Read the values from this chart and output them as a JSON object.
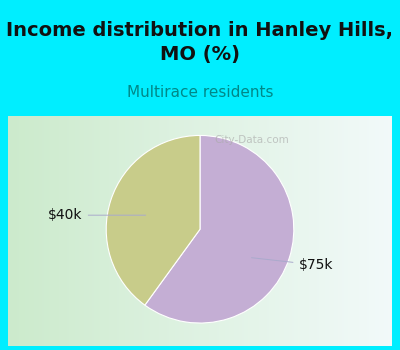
{
  "title": "Income distribution in Hanley Hills,\nMO (%)",
  "subtitle": "Multirace residents",
  "slices": [
    0.6,
    0.4
  ],
  "labels": [
    "$75k",
    "$40k"
  ],
  "colors": [
    "#c4aed4",
    "#c8cc8a"
  ],
  "background_cyan": "#00eeff",
  "title_fontsize": 14,
  "subtitle_fontsize": 11,
  "subtitle_color": "#008888",
  "label_fontsize": 10,
  "startangle": 90,
  "watermark": "City-Data.com",
  "chart_bg_left": "#c8eec8",
  "chart_bg_right": "#f0f8f0"
}
